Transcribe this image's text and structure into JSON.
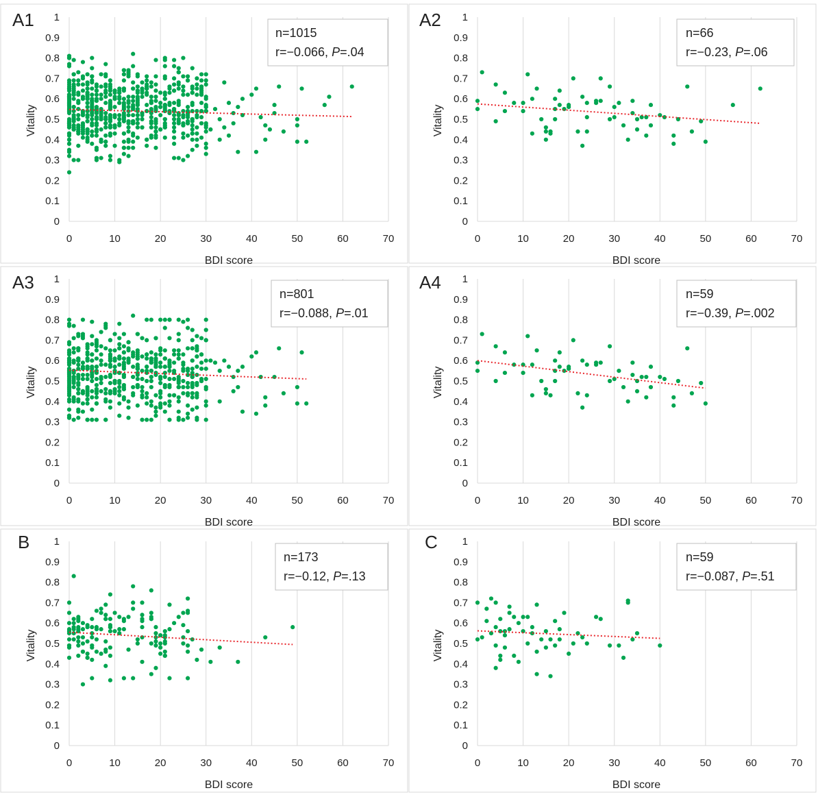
{
  "figure": {
    "point_color": "#00a550",
    "trend_color": "#e8252b",
    "grid_color": "#d9d9d9"
  },
  "chart_data": [
    {
      "panel_label": "A1",
      "type": "scatter",
      "xlabel": "BDI score",
      "ylabel": "Vitality",
      "xlim": [
        0,
        70
      ],
      "ylim": [
        0,
        1
      ],
      "xticks": [
        "0",
        "10",
        "20",
        "30",
        "40",
        "50",
        "60",
        "70"
      ],
      "yticks": [
        "0",
        "0.1",
        "0.2",
        "0.3",
        "0.4",
        "0.5",
        "0.6",
        "0.7",
        "0.8",
        "0.9",
        "1"
      ],
      "grid": "vertical gridlines",
      "stats": {
        "n": "n=1015",
        "r_prefix": "r=−0.066, ",
        "p_label": "P",
        "p_value": "=.04"
      },
      "trendline": {
        "x": [
          0,
          62
        ],
        "y": [
          0.548,
          0.513
        ]
      },
      "cloud": {
        "seed": 11,
        "count": 620,
        "x_max": 30,
        "y_mean": 0.55,
        "y_sd": 0.11,
        "y_min": 0.3,
        "y_max": 0.8
      },
      "points": [
        [
          0,
          0.24
        ],
        [
          0,
          0.81
        ],
        [
          5,
          0.8
        ],
        [
          14,
          0.82
        ],
        [
          8,
          0.77
        ],
        [
          27,
          0.75
        ],
        [
          30,
          0.72
        ],
        [
          34,
          0.68
        ],
        [
          28,
          0.7
        ],
        [
          29,
          0.69
        ],
        [
          32,
          0.55
        ],
        [
          33,
          0.5
        ],
        [
          34,
          0.46
        ],
        [
          35,
          0.58
        ],
        [
          36,
          0.53
        ],
        [
          37,
          0.56
        ],
        [
          38,
          0.52
        ],
        [
          33,
          0.4
        ],
        [
          31,
          0.45
        ],
        [
          35,
          0.42
        ],
        [
          36,
          0.48
        ],
        [
          37,
          0.34
        ],
        [
          38,
          0.6
        ],
        [
          40,
          0.62
        ],
        [
          41,
          0.65
        ],
        [
          41,
          0.34
        ],
        [
          42,
          0.51
        ],
        [
          43,
          0.47
        ],
        [
          43,
          0.4
        ],
        [
          44,
          0.45
        ],
        [
          45,
          0.53
        ],
        [
          45,
          0.57
        ],
        [
          46,
          0.66
        ],
        [
          47,
          0.44
        ],
        [
          50,
          0.5
        ],
        [
          50,
          0.47
        ],
        [
          50,
          0.39
        ],
        [
          51,
          0.65
        ],
        [
          52,
          0.39
        ],
        [
          56,
          0.57
        ],
        [
          57,
          0.61
        ],
        [
          62,
          0.66
        ],
        [
          11,
          0.29
        ],
        [
          24,
          0.31
        ],
        [
          26,
          0.32
        ],
        [
          13,
          0.32
        ]
      ]
    },
    {
      "panel_label": "A2",
      "type": "scatter",
      "xlabel": "BDI score",
      "ylabel": "Vitality",
      "xlim": [
        0,
        70
      ],
      "ylim": [
        0,
        1
      ],
      "xticks": [
        "0",
        "10",
        "20",
        "30",
        "40",
        "50",
        "60",
        "70"
      ],
      "yticks": [
        "0",
        "0.1",
        "0.2",
        "0.3",
        "0.4",
        "0.5",
        "0.6",
        "0.7",
        "0.8",
        "0.9",
        "1"
      ],
      "grid": "vertical gridlines",
      "stats": {
        "n": "n=66",
        "r_prefix": "r=−0.23, ",
        "p_label": "P",
        "p_value": "=.06"
      },
      "trendline": {
        "x": [
          0,
          62
        ],
        "y": [
          0.575,
          0.48
        ]
      },
      "points": [
        [
          0,
          0.59
        ],
        [
          0,
          0.55
        ],
        [
          1,
          0.73
        ],
        [
          4,
          0.67
        ],
        [
          4,
          0.49
        ],
        [
          6,
          0.63
        ],
        [
          6,
          0.54
        ],
        [
          10,
          0.58
        ],
        [
          10,
          0.54
        ],
        [
          11,
          0.72
        ],
        [
          12,
          0.43
        ],
        [
          13,
          0.65
        ],
        [
          14,
          0.5
        ],
        [
          15,
          0.46
        ],
        [
          15,
          0.44
        ],
        [
          15,
          0.4
        ],
        [
          16,
          0.44
        ],
        [
          16,
          0.43
        ],
        [
          17,
          0.55
        ],
        [
          17,
          0.5
        ],
        [
          17,
          0.6
        ],
        [
          18,
          0.57
        ],
        [
          18,
          0.64
        ],
        [
          19,
          0.55
        ],
        [
          20,
          0.56
        ],
        [
          20,
          0.57
        ],
        [
          21,
          0.7
        ],
        [
          22,
          0.44
        ],
        [
          23,
          0.61
        ],
        [
          23,
          0.37
        ],
        [
          24,
          0.58
        ],
        [
          24,
          0.51
        ],
        [
          24,
          0.44
        ],
        [
          26,
          0.59
        ],
        [
          26,
          0.58
        ],
        [
          27,
          0.7
        ],
        [
          27,
          0.59
        ],
        [
          29,
          0.66
        ],
        [
          29,
          0.5
        ],
        [
          30,
          0.51
        ],
        [
          31,
          0.58
        ],
        [
          32,
          0.47
        ],
        [
          33,
          0.4
        ],
        [
          34,
          0.59
        ],
        [
          34,
          0.53
        ],
        [
          35,
          0.5
        ],
        [
          35,
          0.45
        ],
        [
          36,
          0.51
        ],
        [
          37,
          0.51
        ],
        [
          37,
          0.42
        ],
        [
          38,
          0.47
        ],
        [
          38,
          0.57
        ],
        [
          40,
          0.52
        ],
        [
          41,
          0.51
        ],
        [
          43,
          0.42
        ],
        [
          43,
          0.38
        ],
        [
          44,
          0.5
        ],
        [
          46,
          0.66
        ],
        [
          47,
          0.44
        ],
        [
          49,
          0.49
        ],
        [
          50,
          0.39
        ],
        [
          56,
          0.57
        ],
        [
          62,
          0.65
        ],
        [
          12,
          0.6
        ],
        [
          8,
          0.58
        ],
        [
          30,
          0.56
        ]
      ]
    },
    {
      "panel_label": "A3",
      "type": "scatter",
      "xlabel": "BDI score",
      "ylabel": "Vitality",
      "xlim": [
        0,
        70
      ],
      "ylim": [
        0,
        1
      ],
      "xticks": [
        "0",
        "10",
        "20",
        "30",
        "40",
        "50",
        "60",
        "70"
      ],
      "yticks": [
        "0",
        "0.1",
        "0.2",
        "0.3",
        "0.4",
        "0.5",
        "0.6",
        "0.7",
        "0.8",
        "0.9",
        "1"
      ],
      "grid": "vertical gridlines",
      "stats": {
        "n": "n=801",
        "r_prefix": "r=−0.088, ",
        "p_label": "P",
        "p_value": "=.01"
      },
      "trendline": {
        "x": [
          0,
          52
        ],
        "y": [
          0.553,
          0.51
        ]
      },
      "cloud": {
        "seed": 23,
        "count": 520,
        "x_max": 30,
        "y_mean": 0.55,
        "y_sd": 0.11,
        "y_min": 0.31,
        "y_max": 0.8
      },
      "points": [
        [
          5,
          0.79
        ],
        [
          14,
          0.82
        ],
        [
          8,
          0.77
        ],
        [
          27,
          0.7
        ],
        [
          28,
          0.66
        ],
        [
          31,
          0.6
        ],
        [
          32,
          0.59
        ],
        [
          33,
          0.55
        ],
        [
          34,
          0.6
        ],
        [
          35,
          0.57
        ],
        [
          36,
          0.52
        ],
        [
          37,
          0.55
        ],
        [
          37,
          0.47
        ],
        [
          38,
          0.35
        ],
        [
          38,
          0.57
        ],
        [
          40,
          0.62
        ],
        [
          41,
          0.64
        ],
        [
          41,
          0.34
        ],
        [
          42,
          0.52
        ],
        [
          43,
          0.42
        ],
        [
          43,
          0.38
        ],
        [
          45,
          0.52
        ],
        [
          46,
          0.66
        ],
        [
          47,
          0.44
        ],
        [
          50,
          0.47
        ],
        [
          50,
          0.39
        ],
        [
          51,
          0.64
        ],
        [
          52,
          0.39
        ],
        [
          36,
          0.45
        ],
        [
          33,
          0.4
        ],
        [
          24,
          0.31
        ],
        [
          26,
          0.32
        ],
        [
          6,
          0.31
        ],
        [
          0,
          0.33
        ]
      ]
    },
    {
      "panel_label": "A4",
      "type": "scatter",
      "xlabel": "BDI score",
      "ylabel": "Vitality",
      "xlim": [
        0,
        70
      ],
      "ylim": [
        0,
        1
      ],
      "xticks": [
        "0",
        "10",
        "20",
        "30",
        "40",
        "50",
        "60",
        "70"
      ],
      "yticks": [
        "0",
        "0.1",
        "0.2",
        "0.3",
        "0.4",
        "0.5",
        "0.6",
        "0.7",
        "0.8",
        "0.9",
        "1"
      ],
      "grid": "vertical gridlines",
      "stats": {
        "n": "n=59",
        "r_prefix": "r=−0.39, ",
        "p_label": "P",
        "p_value": "=.002"
      },
      "trendline": {
        "x": [
          0,
          50
        ],
        "y": [
          0.6,
          0.465
        ]
      },
      "points": [
        [
          0,
          0.59
        ],
        [
          0,
          0.55
        ],
        [
          1,
          0.73
        ],
        [
          4,
          0.67
        ],
        [
          4,
          0.5
        ],
        [
          6,
          0.64
        ],
        [
          6,
          0.54
        ],
        [
          10,
          0.58
        ],
        [
          10,
          0.54
        ],
        [
          11,
          0.72
        ],
        [
          12,
          0.43
        ],
        [
          13,
          0.65
        ],
        [
          14,
          0.5
        ],
        [
          15,
          0.46
        ],
        [
          15,
          0.44
        ],
        [
          16,
          0.43
        ],
        [
          17,
          0.55
        ],
        [
          17,
          0.5
        ],
        [
          17,
          0.6
        ],
        [
          18,
          0.57
        ],
        [
          18,
          0.64
        ],
        [
          19,
          0.55
        ],
        [
          20,
          0.56
        ],
        [
          20,
          0.57
        ],
        [
          21,
          0.7
        ],
        [
          22,
          0.44
        ],
        [
          23,
          0.6
        ],
        [
          23,
          0.37
        ],
        [
          24,
          0.58
        ],
        [
          24,
          0.43
        ],
        [
          26,
          0.59
        ],
        [
          26,
          0.58
        ],
        [
          27,
          0.59
        ],
        [
          29,
          0.67
        ],
        [
          29,
          0.5
        ],
        [
          30,
          0.51
        ],
        [
          32,
          0.47
        ],
        [
          33,
          0.4
        ],
        [
          34,
          0.59
        ],
        [
          34,
          0.53
        ],
        [
          35,
          0.5
        ],
        [
          35,
          0.45
        ],
        [
          36,
          0.52
        ],
        [
          37,
          0.52
        ],
        [
          37,
          0.42
        ],
        [
          38,
          0.47
        ],
        [
          38,
          0.57
        ],
        [
          40,
          0.52
        ],
        [
          41,
          0.51
        ],
        [
          43,
          0.42
        ],
        [
          43,
          0.38
        ],
        [
          44,
          0.5
        ],
        [
          46,
          0.66
        ],
        [
          47,
          0.44
        ],
        [
          49,
          0.49
        ],
        [
          50,
          0.39
        ],
        [
          12,
          0.58
        ],
        [
          8,
          0.58
        ],
        [
          31,
          0.55
        ]
      ]
    },
    {
      "panel_label": "B",
      "type": "scatter",
      "xlabel": "BDI score",
      "ylabel": "Vitality",
      "xlim": [
        0,
        70
      ],
      "ylim": [
        0,
        1
      ],
      "xticks": [
        "0",
        "10",
        "20",
        "30",
        "40",
        "50",
        "60",
        "70"
      ],
      "yticks": [
        "0",
        "0.1",
        "0.2",
        "0.3",
        "0.4",
        "0.5",
        "0.6",
        "0.7",
        "0.8",
        "0.9",
        "1"
      ],
      "grid": "vertical gridlines",
      "stats": {
        "n": "n=173",
        "r_prefix": "r=−0.12, ",
        "p_label": "P",
        "p_value": "=.13"
      },
      "trendline": {
        "x": [
          0,
          49
        ],
        "y": [
          0.555,
          0.495
        ]
      },
      "cloud": {
        "seed": 37,
        "count": 130,
        "x_max": 26,
        "y_mean": 0.53,
        "y_sd": 0.09,
        "y_min": 0.33,
        "y_max": 0.7
      },
      "points": [
        [
          1,
          0.83
        ],
        [
          3,
          0.3
        ],
        [
          9,
          0.74
        ],
        [
          14,
          0.78
        ],
        [
          18,
          0.76
        ],
        [
          26,
          0.72
        ],
        [
          9,
          0.32
        ],
        [
          12,
          0.33
        ],
        [
          19,
          0.38
        ],
        [
          27,
          0.52
        ],
        [
          28,
          0.42
        ],
        [
          29,
          0.47
        ],
        [
          31,
          0.41
        ],
        [
          33,
          0.48
        ],
        [
          37,
          0.41
        ],
        [
          43,
          0.53
        ],
        [
          49,
          0.58
        ],
        [
          0,
          0.7
        ],
        [
          25,
          0.65
        ]
      ]
    },
    {
      "panel_label": "C",
      "type": "scatter",
      "xlabel": "BDI score",
      "ylabel": "Vitality",
      "xlim": [
        0,
        70
      ],
      "ylim": [
        0,
        1
      ],
      "xticks": [
        "0",
        "10",
        "20",
        "30",
        "40",
        "50",
        "60",
        "70"
      ],
      "yticks": [
        "0",
        "0.1",
        "0.2",
        "0.3",
        "0.4",
        "0.5",
        "0.6",
        "0.7",
        "0.8",
        "0.9",
        "1"
      ],
      "grid": "vertical gridlines",
      "stats": {
        "n": "n=59",
        "r_prefix": "r=−0.087, ",
        "p_label": "P",
        "p_value": "=.51"
      },
      "trendline": {
        "x": [
          0,
          40
        ],
        "y": [
          0.562,
          0.525
        ]
      },
      "points": [
        [
          0,
          0.7
        ],
        [
          0,
          0.52
        ],
        [
          1,
          0.53
        ],
        [
          2,
          0.67
        ],
        [
          2,
          0.61
        ],
        [
          3,
          0.72
        ],
        [
          4,
          0.7
        ],
        [
          4,
          0.58
        ],
        [
          4,
          0.49
        ],
        [
          4,
          0.38
        ],
        [
          5,
          0.62
        ],
        [
          5,
          0.56
        ],
        [
          5,
          0.44
        ],
        [
          5,
          0.42
        ],
        [
          6,
          0.56
        ],
        [
          6,
          0.54
        ],
        [
          7,
          0.68
        ],
        [
          7,
          0.65
        ],
        [
          7,
          0.57
        ],
        [
          8,
          0.63
        ],
        [
          8,
          0.44
        ],
        [
          9,
          0.41
        ],
        [
          10,
          0.63
        ],
        [
          10,
          0.56
        ],
        [
          11,
          0.63
        ],
        [
          12,
          0.58
        ],
        [
          12,
          0.55
        ],
        [
          13,
          0.69
        ],
        [
          13,
          0.46
        ],
        [
          13,
          0.35
        ],
        [
          14,
          0.52
        ],
        [
          15,
          0.48
        ],
        [
          16,
          0.52
        ],
        [
          16,
          0.34
        ],
        [
          17,
          0.49
        ],
        [
          17,
          0.61
        ],
        [
          18,
          0.57
        ],
        [
          18,
          0.52
        ],
        [
          19,
          0.65
        ],
        [
          20,
          0.45
        ],
        [
          21,
          0.5
        ],
        [
          22,
          0.55
        ],
        [
          24,
          0.5
        ],
        [
          26,
          0.63
        ],
        [
          27,
          0.62
        ],
        [
          29,
          0.49
        ],
        [
          31,
          0.49
        ],
        [
          32,
          0.43
        ],
        [
          33,
          0.7
        ],
        [
          33,
          0.71
        ],
        [
          34,
          0.52
        ],
        [
          35,
          0.55
        ],
        [
          40,
          0.49
        ],
        [
          11,
          0.5
        ],
        [
          3,
          0.55
        ],
        [
          9,
          0.6
        ],
        [
          15,
          0.56
        ],
        [
          23,
          0.53
        ],
        [
          6,
          0.48
        ]
      ]
    }
  ]
}
